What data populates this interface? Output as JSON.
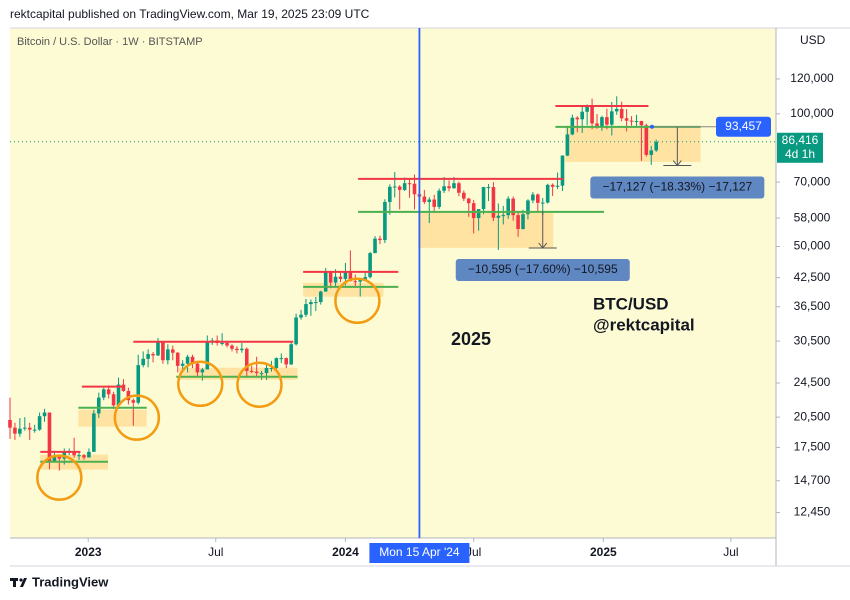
{
  "header": "rektcapital published on TradingView.com, Mar 19, 2025 23:09 UTC",
  "footer": "TradingView",
  "chart_data": {
    "type": "candlestick",
    "title": "Bitcoin / U.S. Dollar · 1W · BITSTAMP",
    "currency": "USD",
    "up_color": "#089981",
    "down_color": "#f23645",
    "background": "#fdfbd4",
    "log_scale": true,
    "xlim": [
      "2022-09-12",
      "2025-09-03"
    ],
    "xticks": [
      {
        "value": "2023-01-01",
        "label": "2023"
      },
      {
        "value": "2023-07-01",
        "label": "Jul"
      },
      {
        "value": "2024-01-01",
        "label": "2024"
      },
      {
        "value": "2024-07-01",
        "label": "Jul"
      },
      {
        "value": "2025-01-01",
        "label": "2025"
      },
      {
        "value": "2025-07-01",
        "label": "Jul"
      }
    ],
    "ylim": [
      10900,
      156600
    ],
    "yticks": [
      {
        "value": 12450,
        "label": "12,450"
      },
      {
        "value": 14700,
        "label": "14,700"
      },
      {
        "value": 17500,
        "label": "17,500"
      },
      {
        "value": 20500,
        "label": "20,500"
      },
      {
        "value": 24500,
        "label": "24,500"
      },
      {
        "value": 30500,
        "label": "30,500"
      },
      {
        "value": 36500,
        "label": "36,500"
      },
      {
        "value": 42500,
        "label": "42,500"
      },
      {
        "value": 50000,
        "label": "50,000"
      },
      {
        "value": 58000,
        "label": "58,000"
      },
      {
        "value": 70000,
        "label": "70,000"
      },
      {
        "value": 100000,
        "label": "100,000"
      },
      {
        "value": 120000,
        "label": "120,000"
      }
    ],
    "x": [
      "2022-09-12",
      "2022-09-19",
      "2022-09-26",
      "2022-10-03",
      "2022-10-10",
      "2022-10-17",
      "2022-10-24",
      "2022-10-31",
      "2022-11-07",
      "2022-11-14",
      "2022-11-21",
      "2022-11-28",
      "2022-12-05",
      "2022-12-12",
      "2022-12-19",
      "2022-12-26",
      "2023-01-02",
      "2023-01-09",
      "2023-01-16",
      "2023-01-23",
      "2023-01-30",
      "2023-02-06",
      "2023-02-13",
      "2023-02-20",
      "2023-02-27",
      "2023-03-06",
      "2023-03-13",
      "2023-03-20",
      "2023-03-27",
      "2023-04-03",
      "2023-04-10",
      "2023-04-17",
      "2023-04-24",
      "2023-05-01",
      "2023-05-08",
      "2023-05-15",
      "2023-05-22",
      "2023-05-29",
      "2023-06-05",
      "2023-06-12",
      "2023-06-19",
      "2023-06-26",
      "2023-07-03",
      "2023-07-10",
      "2023-07-17",
      "2023-07-24",
      "2023-07-31",
      "2023-08-07",
      "2023-08-14",
      "2023-08-21",
      "2023-08-28",
      "2023-09-04",
      "2023-09-11",
      "2023-09-18",
      "2023-09-25",
      "2023-10-02",
      "2023-10-09",
      "2023-10-16",
      "2023-10-23",
      "2023-10-30",
      "2023-11-06",
      "2023-11-13",
      "2023-11-20",
      "2023-11-27",
      "2023-12-04",
      "2023-12-11",
      "2023-12-18",
      "2023-12-25",
      "2024-01-01",
      "2024-01-08",
      "2024-01-15",
      "2024-01-22",
      "2024-01-29",
      "2024-02-05",
      "2024-02-12",
      "2024-02-19",
      "2024-02-26",
      "2024-03-04",
      "2024-03-11",
      "2024-03-18",
      "2024-03-25",
      "2024-04-01",
      "2024-04-08",
      "2024-04-15",
      "2024-04-22",
      "2024-04-29",
      "2024-05-06",
      "2024-05-13",
      "2024-05-20",
      "2024-05-27",
      "2024-06-03",
      "2024-06-10",
      "2024-06-17",
      "2024-06-24",
      "2024-07-01",
      "2024-07-08",
      "2024-07-15",
      "2024-07-22",
      "2024-07-29",
      "2024-08-05",
      "2024-08-12",
      "2024-08-19",
      "2024-08-26",
      "2024-09-02",
      "2024-09-09",
      "2024-09-16",
      "2024-09-23",
      "2024-09-30",
      "2024-10-07",
      "2024-10-14",
      "2024-10-21",
      "2024-10-28",
      "2024-11-04",
      "2024-11-11",
      "2024-11-18",
      "2024-11-25",
      "2024-12-02",
      "2024-12-09",
      "2024-12-16",
      "2024-12-23",
      "2024-12-30",
      "2025-01-06",
      "2025-01-13",
      "2025-01-20",
      "2025-01-27",
      "2025-02-03",
      "2025-02-10",
      "2025-02-17",
      "2025-02-24",
      "2025-03-03",
      "2025-03-10",
      "2025-03-17"
    ],
    "ohlc": [
      [
        20200,
        22700,
        18300,
        19400
      ],
      [
        19400,
        19900,
        18200,
        18800
      ],
      [
        18800,
        20400,
        18500,
        19300
      ],
      [
        19300,
        20500,
        19100,
        19400
      ],
      [
        19400,
        19900,
        18200,
        19200
      ],
      [
        19200,
        19700,
        18900,
        19200
      ],
      [
        19200,
        21000,
        19100,
        20600
      ],
      [
        20600,
        21400,
        20000,
        21000
      ],
      [
        21000,
        21000,
        15600,
        16300
      ],
      [
        16300,
        17200,
        16200,
        16700
      ],
      [
        16700,
        16800,
        15500,
        16500
      ],
      [
        16500,
        17400,
        16000,
        17100
      ],
      [
        17100,
        17400,
        16800,
        17100
      ],
      [
        17100,
        18400,
        16600,
        16800
      ],
      [
        16800,
        17100,
        16400,
        16800
      ],
      [
        16800,
        16900,
        16400,
        16600
      ],
      [
        16600,
        17400,
        16600,
        17100
      ],
      [
        17100,
        21300,
        17100,
        20900
      ],
      [
        20900,
        23300,
        20400,
        22700
      ],
      [
        22700,
        23900,
        22400,
        23700
      ],
      [
        23700,
        24200,
        22600,
        23100
      ],
      [
        23100,
        23400,
        21400,
        21800
      ],
      [
        21800,
        25200,
        21400,
        24300
      ],
      [
        24300,
        25000,
        23400,
        23500
      ],
      [
        23500,
        23900,
        21900,
        22400
      ],
      [
        22400,
        22600,
        19600,
        22100
      ],
      [
        22100,
        28400,
        21900,
        26900
      ],
      [
        26900,
        28900,
        26600,
        27800
      ],
      [
        27800,
        29200,
        26600,
        28500
      ],
      [
        28500,
        28800,
        27300,
        28300
      ],
      [
        28300,
        31000,
        28200,
        30300
      ],
      [
        30300,
        30500,
        27100,
        27600
      ],
      [
        27600,
        30000,
        27000,
        29200
      ],
      [
        29200,
        29800,
        27600,
        28700
      ],
      [
        28700,
        28800,
        25900,
        26800
      ],
      [
        26800,
        27600,
        26200,
        27100
      ],
      [
        27100,
        28400,
        25900,
        28100
      ],
      [
        28100,
        28400,
        26500,
        27100
      ],
      [
        27100,
        27200,
        25400,
        25900
      ],
      [
        25900,
        26500,
        24800,
        26300
      ],
      [
        26300,
        31400,
        26300,
        30500
      ],
      [
        30500,
        31000,
        29900,
        30600
      ],
      [
        30600,
        31400,
        29800,
        30200
      ],
      [
        30200,
        31800,
        29800,
        30200
      ],
      [
        30200,
        30400,
        29500,
        29800
      ],
      [
        29800,
        30000,
        28900,
        29300
      ],
      [
        29300,
        29700,
        28600,
        29100
      ],
      [
        29100,
        30200,
        28700,
        29300
      ],
      [
        29300,
        29500,
        25200,
        26100
      ],
      [
        26100,
        26800,
        25800,
        26000
      ],
      [
        26000,
        28100,
        25400,
        25800
      ],
      [
        25800,
        26100,
        24900,
        25800
      ],
      [
        25800,
        26900,
        24900,
        26500
      ],
      [
        26500,
        27500,
        26000,
        26500
      ],
      [
        26500,
        28000,
        26000,
        27900
      ],
      [
        27900,
        28600,
        27200,
        27900
      ],
      [
        27900,
        28000,
        26500,
        27000
      ],
      [
        27000,
        30300,
        26900,
        30000
      ],
      [
        30000,
        35200,
        29800,
        34500
      ],
      [
        34500,
        35900,
        34100,
        35000
      ],
      [
        35000,
        38000,
        34600,
        37000
      ],
      [
        37000,
        37900,
        34800,
        37400
      ],
      [
        37400,
        38400,
        35700,
        37400
      ],
      [
        37400,
        39700,
        36900,
        39500
      ],
      [
        39500,
        44700,
        39500,
        43800
      ],
      [
        43800,
        43800,
        40200,
        41400
      ],
      [
        41400,
        44400,
        40500,
        42700
      ],
      [
        42700,
        43800,
        41500,
        42200
      ],
      [
        42200,
        45900,
        40800,
        43900
      ],
      [
        43900,
        49000,
        41700,
        41700
      ],
      [
        41700,
        43200,
        40300,
        41600
      ],
      [
        41600,
        42200,
        38500,
        42000
      ],
      [
        42000,
        43800,
        41800,
        42600
      ],
      [
        42600,
        48600,
        42300,
        48300
      ],
      [
        48300,
        52800,
        48300,
        52100
      ],
      [
        52100,
        52900,
        50600,
        51700
      ],
      [
        51700,
        64000,
        50900,
        63100
      ],
      [
        63100,
        69200,
        59000,
        68300
      ],
      [
        68300,
        73800,
        64600,
        68400
      ],
      [
        68400,
        68900,
        60700,
        67200
      ],
      [
        67200,
        71700,
        66800,
        69600
      ],
      [
        69600,
        71300,
        64500,
        69400
      ],
      [
        69400,
        72800,
        60700,
        65700
      ],
      [
        65700,
        66900,
        59600,
        64900
      ],
      [
        64900,
        67200,
        62400,
        63100
      ],
      [
        63100,
        64700,
        56500,
        63900
      ],
      [
        63900,
        65500,
        60200,
        61500
      ],
      [
        61500,
        67700,
        60800,
        66900
      ],
      [
        66900,
        71900,
        66100,
        68500
      ],
      [
        68500,
        70600,
        66700,
        67800
      ],
      [
        67800,
        71900,
        67600,
        69600
      ],
      [
        69600,
        70200,
        65000,
        66200
      ],
      [
        66200,
        67000,
        63400,
        64200
      ],
      [
        64200,
        64500,
        58400,
        62700
      ],
      [
        62700,
        63800,
        53500,
        58000
      ],
      [
        58000,
        59400,
        54300,
        60800
      ],
      [
        60800,
        68300,
        59200,
        68200
      ],
      [
        68200,
        69300,
        63400,
        68200
      ],
      [
        68200,
        70000,
        57100,
        58100
      ],
      [
        58100,
        62600,
        49100,
        58700
      ],
      [
        58700,
        61800,
        56100,
        58900
      ],
      [
        58900,
        65000,
        57800,
        64200
      ],
      [
        64200,
        64900,
        57200,
        58900
      ],
      [
        58900,
        59800,
        52600,
        54800
      ],
      [
        54800,
        60600,
        54600,
        59200
      ],
      [
        59200,
        64000,
        57600,
        63600
      ],
      [
        63600,
        66500,
        62700,
        65600
      ],
      [
        65600,
        66000,
        59800,
        62800
      ],
      [
        62800,
        64400,
        58900,
        62900
      ],
      [
        62900,
        69400,
        62600,
        69000
      ],
      [
        69000,
        69500,
        65100,
        68300
      ],
      [
        68300,
        73600,
        67500,
        68700
      ],
      [
        68700,
        80500,
        66800,
        80400
      ],
      [
        80400,
        93400,
        80200,
        89800
      ],
      [
        89800,
        99600,
        89400,
        98000
      ],
      [
        98000,
        98800,
        90800,
        97200
      ],
      [
        97200,
        104000,
        90500,
        101100
      ],
      [
        101100,
        105000,
        94200,
        104500
      ],
      [
        104500,
        108300,
        92200,
        95100
      ],
      [
        95100,
        99900,
        92500,
        93700
      ],
      [
        93700,
        99000,
        91500,
        98300
      ],
      [
        98300,
        102700,
        92200,
        94500
      ],
      [
        94500,
        106400,
        89300,
        101300
      ],
      [
        101300,
        109600,
        99500,
        102600
      ],
      [
        102600,
        106500,
        96200,
        97700
      ],
      [
        97700,
        102500,
        91200,
        96500
      ],
      [
        96500,
        98800,
        94000,
        96100
      ],
      [
        96100,
        99500,
        93400,
        96300
      ],
      [
        96300,
        96500,
        78200,
        94200
      ],
      [
        94200,
        95000,
        80000,
        80700
      ],
      [
        80700,
        84500,
        76600,
        82600
      ],
      [
        82600,
        87400,
        82000,
        86416
      ]
    ],
    "last_price": {
      "value": 86416,
      "label": "86,416",
      "countdown": "4d 1h"
    },
    "price_label": {
      "value": 93457,
      "label": "93,457",
      "color": "#2962ff"
    },
    "crosshair": {
      "x": "2024-04-15",
      "label": "Mon 15 Apr '24",
      "color": "#2962ff"
    },
    "level_colors": {
      "resistance": "#f23645",
      "support": "#4caf50"
    },
    "levels": [
      {
        "kind": "resistance",
        "price": 17100,
        "x": [
          "2022-10-25",
          "2022-12-21"
        ]
      },
      {
        "kind": "support",
        "price": 16240,
        "x": [
          "2022-10-25",
          "2023-01-29"
        ]
      },
      {
        "kind": "resistance",
        "price": 24040,
        "x": [
          "2022-12-23",
          "2023-02-22"
        ]
      },
      {
        "kind": "support",
        "price": 21530,
        "x": [
          "2022-12-18",
          "2023-03-25"
        ]
      },
      {
        "kind": "resistance",
        "price": 30400,
        "x": [
          "2023-03-06",
          "2023-10-19"
        ]
      },
      {
        "kind": "support",
        "price": 25320,
        "x": [
          "2023-05-06",
          "2023-10-25"
        ]
      },
      {
        "kind": "resistance",
        "price": 43800,
        "x": [
          "2023-11-02",
          "2024-03-16"
        ]
      },
      {
        "kind": "support",
        "price": 40500,
        "x": [
          "2023-11-02",
          "2024-03-16"
        ]
      },
      {
        "kind": "resistance",
        "price": 71200,
        "x": [
          "2024-01-19",
          "2024-11-05"
        ]
      },
      {
        "kind": "support",
        "price": 59900,
        "x": [
          "2024-01-19",
          "2025-01-02"
        ]
      },
      {
        "kind": "resistance",
        "price": 104200,
        "x": [
          "2024-10-25",
          "2025-03-06"
        ]
      },
      {
        "kind": "support",
        "price": 93400,
        "x": [
          "2024-10-25",
          "2025-05-19"
        ]
      }
    ],
    "zone_color": "#ffcf7a",
    "zones": [
      {
        "low": 15580,
        "high": 16850,
        "x": [
          "2022-10-25",
          "2023-01-29"
        ]
      },
      {
        "low": 19500,
        "high": 21310,
        "x": [
          "2022-12-18",
          "2023-03-25"
        ]
      },
      {
        "low": 24920,
        "high": 26530,
        "x": [
          "2023-05-10",
          "2023-10-25"
        ]
      },
      {
        "low": 38450,
        "high": 41350,
        "x": [
          "2023-11-02",
          "2024-02-24"
        ]
      },
      {
        "low": 49650,
        "high": 59900,
        "x": [
          "2024-04-13",
          "2024-10-22"
        ]
      },
      {
        "low": 77800,
        "high": 93400,
        "x": [
          "2024-11-08",
          "2025-05-19"
        ]
      }
    ],
    "circle_color": "#f39c12",
    "circles": [
      {
        "x": "2022-11-21",
        "price": 14940
      },
      {
        "x": "2023-03-11",
        "price": 20440
      },
      {
        "x": "2023-06-09",
        "price": 24400
      },
      {
        "x": "2023-09-01",
        "price": 24280
      },
      {
        "x": "2024-01-18",
        "price": 37650
      }
    ],
    "measures": [
      {
        "x": "2024-10-07",
        "from": 60200,
        "to": 49605,
        "change": -10595,
        "label": "−10,595 (−17.60%) −10,595"
      },
      {
        "x": "2025-04-16",
        "from": 93457,
        "to": 76330,
        "change": -17127,
        "label": "−17,127 (−18.33%) −17,127"
      }
    ],
    "annotations": [
      "2025",
      "BTC/USD",
      "@rektcapital"
    ]
  }
}
